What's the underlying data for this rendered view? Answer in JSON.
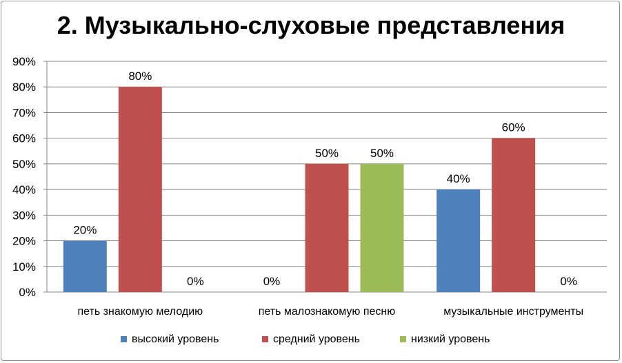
{
  "chart_data": {
    "type": "bar",
    "title": "2. Музыкально-слуховые представления",
    "categories": [
      "петь знакомую мелодию",
      "петь малознакомую песню",
      "музыкальные инструменты"
    ],
    "series": [
      {
        "name": "высокий уровень",
        "color": "#4f81bd",
        "values": [
          20,
          0,
          40
        ]
      },
      {
        "name": "средний уровень",
        "color": "#c0504d",
        "values": [
          80,
          50,
          60
        ]
      },
      {
        "name": "низкий уровень",
        "color": "#9bbb59",
        "values": [
          0,
          50,
          0
        ]
      }
    ],
    "data_labels": [
      [
        "20%",
        "0%",
        "40%"
      ],
      [
        "80%",
        "50%",
        "60%"
      ],
      [
        "0%",
        "50%",
        "0%"
      ]
    ],
    "y_ticks": [
      "0%",
      "10%",
      "20%",
      "30%",
      "40%",
      "50%",
      "60%",
      "70%",
      "80%",
      "90%"
    ],
    "ylim": [
      0,
      90
    ],
    "y_unit": "%",
    "grid": true,
    "legend_position": "bottom"
  }
}
